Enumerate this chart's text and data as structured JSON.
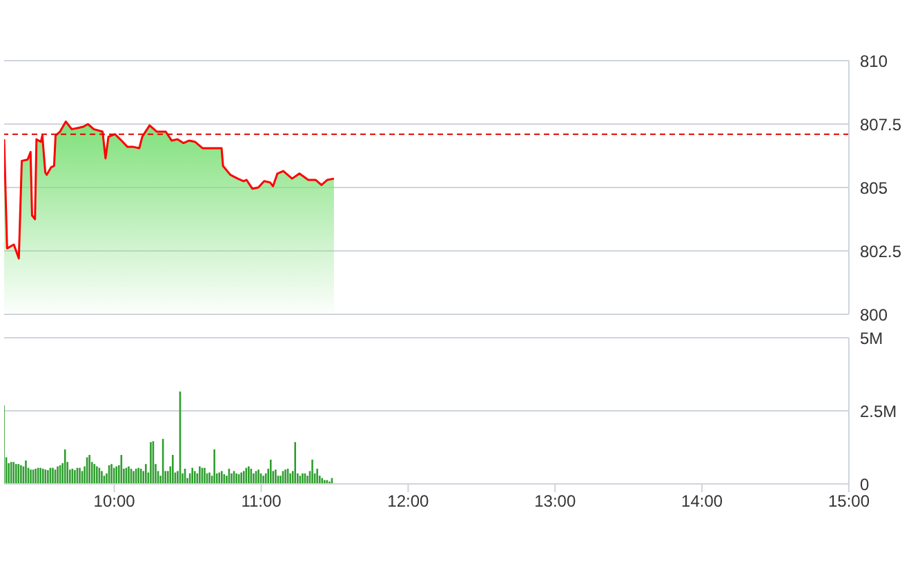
{
  "chart_data": [
    {
      "type": "area",
      "xlim": [
        9.25,
        15
      ],
      "ylim": [
        800,
        810
      ],
      "yticks": [
        800,
        {
          "value": 802.5,
          "label": "802.5"
        },
        805,
        {
          "value": 807.5,
          "label": "807.5"
        },
        810
      ],
      "grid": "y",
      "tick_labels": "y",
      "marker": "none",
      "ref_lines": [
        {
          "axis": "y",
          "value": 807.1,
          "color": "#e00000",
          "line_style": "dashed"
        }
      ],
      "series": [
        {
          "color": "#ff0000",
          "x": [
            9.25,
            9.27,
            9.316,
            9.35,
            9.37,
            9.41,
            9.43,
            9.44,
            9.46,
            9.47,
            9.5,
            9.51,
            9.53,
            9.54,
            9.57,
            9.59,
            9.6,
            9.63,
            9.67,
            9.71,
            9.755,
            9.79,
            9.82,
            9.86,
            9.92,
            9.94,
            9.96,
            10.005,
            10.04,
            10.09,
            10.13,
            10.17,
            10.19,
            10.24,
            10.29,
            10.35,
            10.39,
            10.43,
            10.47,
            10.51,
            10.55,
            10.6,
            10.65,
            10.695,
            10.73,
            10.74,
            10.79,
            10.84,
            10.88,
            10.9,
            10.94,
            10.98,
            11.02,
            11.06,
            11.08,
            11.11,
            11.15,
            11.21,
            11.26,
            11.32,
            11.37,
            11.41,
            11.45,
            11.495
          ],
          "values": [
            806.9,
            802.6,
            802.75,
            802.2,
            806.05,
            806.1,
            806.4,
            803.9,
            803.75,
            806.9,
            806.8,
            807.05,
            805.6,
            805.5,
            805.8,
            805.85,
            807.05,
            807.2,
            807.6,
            807.3,
            807.35,
            807.4,
            807.5,
            807.3,
            807.2,
            806.15,
            807.0,
            807.1,
            806.9,
            806.6,
            806.6,
            806.55,
            807.0,
            807.45,
            807.2,
            807.2,
            806.85,
            806.9,
            806.75,
            806.85,
            806.8,
            806.55,
            806.55,
            806.55,
            806.55,
            805.85,
            805.5,
            805.35,
            805.25,
            805.3,
            804.95,
            805.0,
            805.25,
            805.2,
            805.05,
            805.55,
            805.65,
            805.35,
            805.55,
            805.3,
            805.3,
            805.1,
            805.3,
            805.35
          ]
        }
      ]
    },
    {
      "type": "bar",
      "xlim": [
        9.25,
        15
      ],
      "xticks": [
        {
          "value": 10,
          "label": "10:00"
        },
        {
          "value": 11,
          "label": "11:00"
        },
        {
          "value": 12,
          "label": "12:00"
        },
        {
          "value": 13,
          "label": "13:00"
        },
        {
          "value": 14,
          "label": "14:00"
        },
        {
          "value": 15,
          "label": "15:00"
        }
      ],
      "ylim": [
        0,
        5
      ],
      "yticks": [
        0,
        {
          "value": 2.5,
          "label": "2.5M"
        },
        {
          "value": 5,
          "label": "5M"
        }
      ],
      "grid": "y",
      "series": [
        {
          "color": "#2e9e2e",
          "x": [
            9.25,
            9.2667,
            9.2833,
            9.3,
            9.3167,
            9.3333,
            9.35,
            9.3667,
            9.3833,
            9.4,
            9.4167,
            9.4333,
            9.45,
            9.4667,
            9.4833,
            9.5,
            9.5167,
            9.5333,
            9.55,
            9.5667,
            9.5833,
            9.6,
            9.6167,
            9.6333,
            9.65,
            9.6667,
            9.6833,
            9.7,
            9.7167,
            9.7333,
            9.75,
            9.7667,
            9.7833,
            9.8,
            9.8167,
            9.8333,
            9.85,
            9.8667,
            9.8833,
            9.9,
            9.9167,
            9.9333,
            9.95,
            9.9667,
            9.9833,
            10.0,
            10.0167,
            10.0333,
            10.05,
            10.0667,
            10.0833,
            10.1,
            10.1167,
            10.1333,
            10.15,
            10.1667,
            10.1833,
            10.2,
            10.2167,
            10.2333,
            10.25,
            10.2667,
            10.2833,
            10.3,
            10.3167,
            10.3333,
            10.35,
            10.3667,
            10.3833,
            10.4,
            10.4167,
            10.4333,
            10.45,
            10.4667,
            10.4833,
            10.5,
            10.5167,
            10.5333,
            10.55,
            10.5667,
            10.5833,
            10.6,
            10.6167,
            10.6333,
            10.65,
            10.6667,
            10.6833,
            10.7,
            10.7167,
            10.7333,
            10.75,
            10.7667,
            10.7833,
            10.8,
            10.8167,
            10.8333,
            10.85,
            10.8667,
            10.8833,
            10.9,
            10.9167,
            10.9333,
            10.95,
            10.9667,
            10.9833,
            11.0,
            11.0167,
            11.0333,
            11.05,
            11.0667,
            11.0833,
            11.1,
            11.1167,
            11.1333,
            11.15,
            11.1667,
            11.1833,
            11.2,
            11.2167,
            11.2333,
            11.25,
            11.2667,
            11.2833,
            11.3,
            11.3167,
            11.3333,
            11.35,
            11.3667,
            11.3833,
            11.4,
            11.4167,
            11.4333,
            11.45,
            11.4667,
            11.4833
          ],
          "values": [
            2.69,
            0.91,
            0.71,
            0.75,
            0.75,
            0.68,
            0.68,
            0.64,
            0.6,
            0.8,
            0.55,
            0.49,
            0.49,
            0.52,
            0.55,
            0.55,
            0.52,
            0.49,
            0.47,
            0.55,
            0.55,
            0.49,
            0.6,
            0.64,
            0.71,
            1.18,
            0.75,
            0.49,
            0.52,
            0.47,
            0.55,
            0.55,
            0.44,
            0.6,
            0.91,
            0.99,
            0.75,
            0.68,
            0.6,
            0.55,
            0.44,
            0.28,
            0.36,
            0.64,
            0.68,
            0.55,
            0.6,
            0.64,
            0.99,
            0.52,
            0.55,
            0.6,
            0.52,
            0.44,
            0.52,
            0.55,
            0.52,
            0.44,
            0.68,
            0.39,
            1.43,
            1.46,
            0.68,
            0.44,
            0.28,
            1.54,
            0.44,
            0.44,
            0.6,
            0.99,
            0.39,
            0.44,
            3.16,
            0.36,
            0.52,
            0.2,
            0.36,
            0.55,
            0.44,
            0.36,
            0.6,
            0.55,
            0.55,
            0.36,
            0.39,
            0.28,
            1.18,
            0.36,
            0.39,
            0.44,
            0.33,
            0.28,
            0.52,
            0.36,
            0.44,
            0.36,
            0.33,
            0.39,
            0.44,
            0.55,
            0.6,
            0.52,
            0.36,
            0.44,
            0.49,
            0.36,
            0.28,
            0.36,
            0.52,
            0.83,
            0.44,
            0.49,
            0.28,
            0.28,
            0.44,
            0.49,
            0.52,
            0.36,
            0.44,
            1.43,
            0.36,
            0.28,
            0.36,
            0.36,
            0.28,
            0.44,
            0.83,
            0.36,
            0.52,
            0.28,
            0.2,
            0.13,
            0.13,
            0.08,
            0.2
          ]
        }
      ]
    }
  ]
}
